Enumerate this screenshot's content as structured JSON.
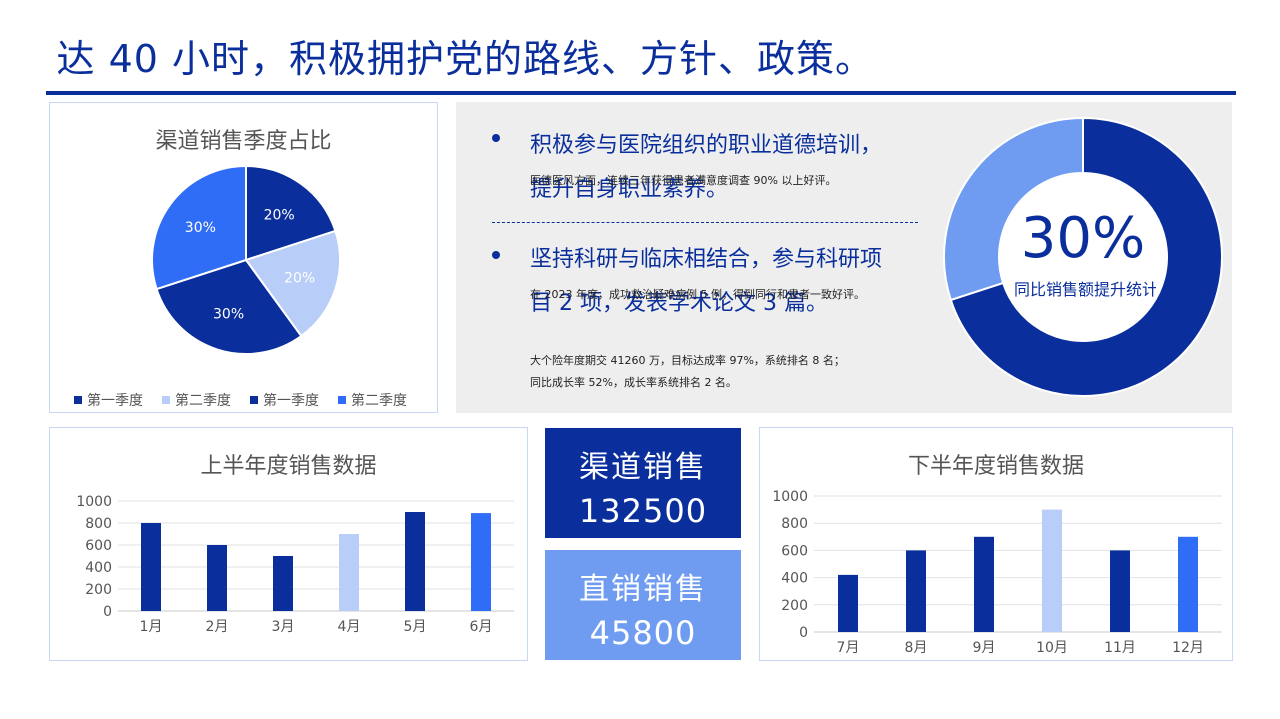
{
  "header": {
    "title": "达 40 小时，积极拥护党的路线、方针、政策。"
  },
  "colors": {
    "dark": "#0a2f9c",
    "light": "#b8cdf7",
    "bright": "#2f6df6",
    "mid": "#6f9cf0"
  },
  "bullets": [
    {
      "text": "积极参与医院组织的职业道德培训，提升自身职业素养。",
      "detail": "医德医风方面，连续三年获得患者满意度调查 90% 以上好评。"
    },
    {
      "text": "坚持科研与临床相结合，参与科研项目 2 项，发表学术论文 3 篇。",
      "detail": "在 2023 年度，成功救治疑难病例 5 例，得到同行和患者一致好评。"
    }
  ],
  "notes": [
    "大个险年度期交 41260 万，目标达成率 97%，系统排名 8 名；",
    "同比成长率 52%，成长率系统排名 2 名。"
  ],
  "kpi": {
    "percent": "30%",
    "caption": "同比销售额提升统计",
    "value": 0.7
  },
  "stats": [
    {
      "label": "渠道销售",
      "value": "132500"
    },
    {
      "label": "直销销售",
      "value": "45800"
    }
  ],
  "chart_data": [
    {
      "type": "pie",
      "title": "渠道销售季度占比",
      "categories": [
        "第一季度",
        "第二季度",
        "第一季度",
        "第二季度"
      ],
      "values": [
        20,
        20,
        30,
        30
      ],
      "labels": [
        "20%",
        "20%",
        "30%",
        "30%"
      ],
      "colors": [
        "#0a2f9c",
        "#b8cdf7",
        "#0a2f9c",
        "#2f6df6"
      ],
      "legend": "bottom"
    },
    {
      "type": "bar",
      "title": "上半年度销售数据",
      "categories": [
        "1月",
        "2月",
        "3月",
        "4月",
        "5月",
        "6月"
      ],
      "values": [
        800,
        600,
        500,
        700,
        900,
        890
      ],
      "colors": [
        "#0a2f9c",
        "#0a2f9c",
        "#0a2f9c",
        "#b8cdf7",
        "#0a2f9c",
        "#2f6df6"
      ],
      "ylim": [
        0,
        1000
      ],
      "yticks": [
        0,
        200,
        400,
        600,
        800,
        1000
      ],
      "grid": true
    },
    {
      "type": "bar",
      "title": "下半年度销售数据",
      "categories": [
        "7月",
        "8月",
        "9月",
        "10月",
        "11月",
        "12月"
      ],
      "values": [
        420,
        600,
        700,
        900,
        600,
        700
      ],
      "colors": [
        "#0a2f9c",
        "#0a2f9c",
        "#0a2f9c",
        "#b8cdf7",
        "#0a2f9c",
        "#2f6df6"
      ],
      "ylim": [
        0,
        1000
      ],
      "yticks": [
        0,
        200,
        400,
        600,
        800,
        1000
      ],
      "grid": true
    }
  ]
}
